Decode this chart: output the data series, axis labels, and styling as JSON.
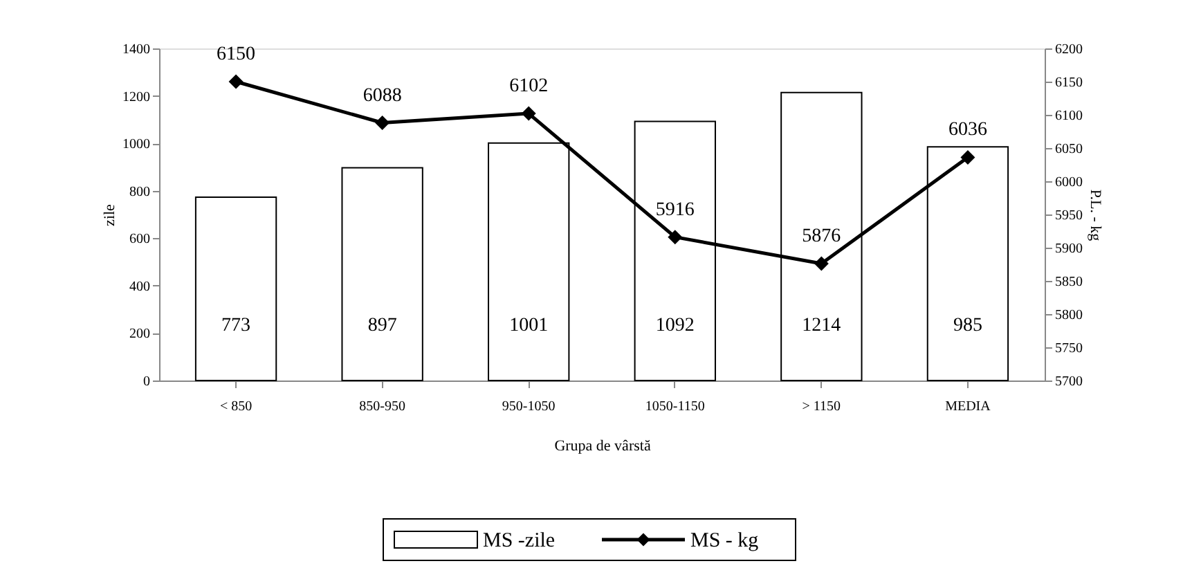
{
  "chart_data": {
    "type": "bar",
    "xlabel": "Grupa de vârstă",
    "ylabel": "zile",
    "y2label": "P.L. - kg",
    "categories": [
      "< 850",
      "850-950",
      "950-1050",
      "1050-1150",
      "> 1150",
      "MEDIA"
    ],
    "series": [
      {
        "name": "MS -zile",
        "color": "#ffffff",
        "values": [
          773,
          897,
          1001,
          1092,
          1214,
          985
        ]
      },
      {
        "name": "MS - kg",
        "type": "line",
        "axis": "y2",
        "color": "#000000",
        "marker": "diamond",
        "line_style": "solid",
        "values": [
          6150,
          6088,
          6102,
          5916,
          5876,
          6036
        ]
      }
    ],
    "data_labels": true,
    "ylim": [
      0,
      1400
    ],
    "yticks": [
      0,
      200,
      400,
      600,
      800,
      1000,
      1200,
      1400
    ],
    "y2lim": [
      5700,
      6200
    ],
    "y2ticks": [
      5700,
      5750,
      5800,
      5850,
      5900,
      5950,
      6000,
      6050,
      6100,
      6150,
      6200
    ],
    "grid": false,
    "legend": "bottom"
  }
}
